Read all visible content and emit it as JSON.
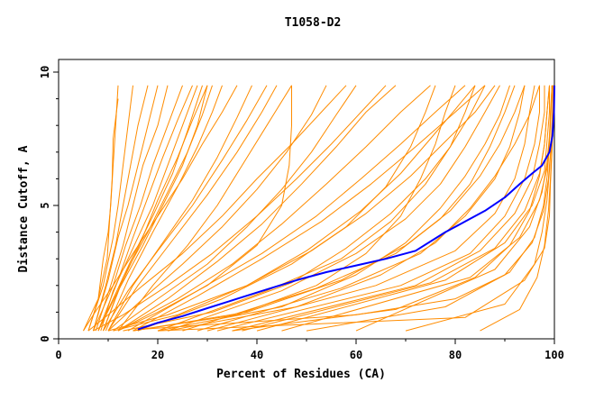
{
  "chart_data": {
    "type": "line",
    "title": "T1058-D2",
    "xlabel": "Percent of Residues (CA)",
    "ylabel": "Distance Cutoff, A",
    "xlim": [
      0,
      100
    ],
    "ylim": [
      0,
      10
    ],
    "x_ticks": [
      "0",
      "20",
      "40",
      "60",
      "80",
      "100"
    ],
    "y_ticks": [
      "0",
      "5",
      "10"
    ],
    "grid": false,
    "legend": "none",
    "colors": {
      "group": "#ff8c00",
      "highlight": "#0000ff"
    },
    "series": [
      {
        "x": [
          12,
          11.5,
          11,
          10.5,
          10,
          9,
          8,
          6
        ],
        "y": [
          9.5,
          8,
          6.5,
          5,
          4,
          3,
          1.5,
          0.3
        ]
      },
      {
        "x": [
          12,
          11,
          10.8,
          10.3,
          9.8,
          8,
          5
        ],
        "y": [
          9,
          7.5,
          6,
          4.5,
          3,
          1.5,
          0.3
        ]
      },
      {
        "x": [
          15,
          14,
          13,
          12,
          11,
          9,
          6
        ],
        "y": [
          9.5,
          8,
          6.5,
          5,
          3.8,
          2,
          0.3
        ]
      },
      {
        "x": [
          18,
          16,
          14.5,
          13,
          11.5,
          9.5,
          7
        ],
        "y": [
          9.5,
          8,
          6.5,
          5,
          3.5,
          2,
          0.3
        ]
      },
      {
        "x": [
          20,
          18,
          16,
          14,
          12,
          10,
          7
        ],
        "y": [
          9.5,
          8,
          6.5,
          5,
          3.8,
          2.2,
          0.3
        ]
      },
      {
        "x": [
          22,
          20,
          17,
          15,
          13,
          10.5,
          7.5
        ],
        "y": [
          9.5,
          8,
          6.5,
          5,
          3.5,
          2,
          0.3
        ]
      },
      {
        "x": [
          25,
          22,
          19,
          16.5,
          13.5,
          11,
          7
        ],
        "y": [
          9.5,
          8,
          6.5,
          5,
          3.5,
          2,
          0.3
        ]
      },
      {
        "x": [
          27,
          24,
          21,
          18,
          15,
          12,
          8
        ],
        "y": [
          9.5,
          8.2,
          6.8,
          5.3,
          3.8,
          2.2,
          0.3
        ]
      },
      {
        "x": [
          28,
          25,
          22,
          19,
          15,
          11,
          8.5
        ],
        "y": [
          9.5,
          8,
          6.5,
          5,
          3.4,
          1.8,
          0.3
        ]
      },
      {
        "x": [
          30,
          27,
          24,
          20,
          16.5,
          12.5,
          9
        ],
        "y": [
          9.5,
          8.2,
          6.8,
          5.2,
          3.6,
          2,
          0.3
        ]
      },
      {
        "x": [
          31,
          29,
          26,
          22,
          18,
          13,
          9
        ],
        "y": [
          9.5,
          8.4,
          7,
          5.5,
          4,
          2.3,
          0.3
        ]
      },
      {
        "x": [
          30,
          28,
          25,
          21,
          17,
          12,
          8
        ],
        "y": [
          9.5,
          8,
          6.5,
          5,
          3.5,
          1.8,
          0.3
        ]
      },
      {
        "x": [
          33,
          31,
          28,
          24,
          19,
          14,
          9.5
        ],
        "y": [
          9.5,
          8.5,
          7.2,
          5.7,
          4,
          2.2,
          0.3
        ]
      },
      {
        "x": [
          29,
          26,
          23,
          19,
          15,
          11.5,
          8
        ],
        "y": [
          9.5,
          7.8,
          6.2,
          4.6,
          3.1,
          1.7,
          0.3
        ]
      },
      {
        "x": [
          39,
          36,
          32,
          27,
          21,
          15,
          10
        ],
        "y": [
          9.5,
          8.3,
          6.8,
          5.2,
          3.6,
          2,
          0.3
        ]
      },
      {
        "x": [
          42,
          38,
          33,
          27,
          20,
          14,
          9
        ],
        "y": [
          9.5,
          8.2,
          6.7,
          5,
          3.3,
          1.8,
          0.3
        ]
      },
      {
        "x": [
          44,
          41,
          36,
          30,
          23,
          16,
          10
        ],
        "y": [
          9.5,
          8.5,
          7,
          5.4,
          3.7,
          2,
          0.3
        ]
      },
      {
        "x": [
          47,
          42,
          37,
          32,
          26,
          19,
          12
        ],
        "y": [
          9.5,
          8,
          6.5,
          5,
          3.5,
          2,
          0.3
        ]
      },
      {
        "x": [
          47,
          47,
          46.5,
          45,
          40,
          30,
          20,
          12
        ],
        "y": [
          9.5,
          8,
          6.5,
          5,
          3.5,
          2,
          1,
          0.3
        ]
      },
      {
        "x": [
          54,
          51,
          46,
          40,
          33,
          25,
          17,
          10
        ],
        "y": [
          9.5,
          8.4,
          7,
          5.6,
          4.2,
          2.8,
          1.5,
          0.3
        ]
      },
      {
        "x": [
          60,
          56,
          51,
          45,
          38,
          30,
          20,
          11
        ],
        "y": [
          9.5,
          8.4,
          7,
          5.6,
          4.2,
          2.8,
          1.5,
          0.3
        ]
      },
      {
        "x": [
          68,
          62,
          56,
          49,
          41,
          32,
          22,
          12
        ],
        "y": [
          9.5,
          8.5,
          7.2,
          5.8,
          4.3,
          2.9,
          1.5,
          0.3
        ]
      },
      {
        "x": [
          75,
          69,
          62,
          54,
          45,
          35,
          24,
          12
        ],
        "y": [
          9.5,
          8.5,
          7.2,
          5.8,
          4.3,
          2.8,
          1.5,
          0.3
        ]
      },
      {
        "x": [
          82,
          76,
          69,
          61,
          52,
          41,
          28,
          14
        ],
        "y": [
          9.5,
          8.5,
          7.3,
          6,
          4.6,
          3.2,
          1.8,
          0.3
        ]
      },
      {
        "x": [
          86,
          80,
          72,
          63,
          53,
          41,
          28,
          15
        ],
        "y": [
          9.5,
          8.5,
          7.2,
          5.8,
          4.4,
          3,
          1.6,
          0.3
        ]
      },
      {
        "x": [
          76,
          74,
          71,
          66,
          58,
          47,
          33,
          16
        ],
        "y": [
          9.5,
          8.5,
          7.2,
          5.7,
          4.2,
          2.8,
          1.5,
          0.3
        ]
      },
      {
        "x": [
          84,
          82,
          79,
          74,
          67,
          57,
          42,
          20
        ],
        "y": [
          9.5,
          8.5,
          7.2,
          5.8,
          4.4,
          3,
          1.8,
          0.3
        ]
      },
      {
        "x": [
          89,
          86,
          82,
          77,
          70,
          60,
          45,
          22
        ],
        "y": [
          9.5,
          8.5,
          7.2,
          5.8,
          4.5,
          3.2,
          1.8,
          0.3
        ]
      },
      {
        "x": [
          92,
          90,
          87,
          83,
          77,
          68,
          52,
          25
        ],
        "y": [
          9.5,
          8.5,
          7.2,
          5.8,
          4.5,
          3.2,
          1.9,
          0.3
        ]
      },
      {
        "x": [
          94,
          93,
          91,
          88,
          82,
          73,
          57,
          28
        ],
        "y": [
          9.5,
          8.5,
          7.2,
          6,
          4.6,
          3.2,
          1.9,
          0.3
        ]
      },
      {
        "x": [
          96,
          95,
          94,
          92,
          88,
          80,
          64,
          30
        ],
        "y": [
          9.5,
          8.5,
          7.3,
          6,
          4.7,
          3.3,
          2,
          0.3
        ]
      },
      {
        "x": [
          97,
          97,
          96,
          94,
          90,
          83,
          69,
          32
        ],
        "y": [
          9.5,
          8.5,
          7.3,
          6,
          4.6,
          3.2,
          2,
          0.3
        ]
      },
      {
        "x": [
          98,
          98,
          97,
          95.5,
          92,
          85,
          72,
          35
        ],
        "y": [
          9.5,
          8.5,
          7.3,
          6,
          4.7,
          3.3,
          2,
          0.3
        ]
      },
      {
        "x": [
          99,
          98.5,
          98,
          97,
          94,
          88,
          75,
          37
        ],
        "y": [
          9.5,
          8.5,
          7.3,
          6.2,
          4.8,
          3.4,
          2.1,
          0.3
        ]
      },
      {
        "x": [
          99,
          99,
          98.5,
          98,
          95.5,
          90,
          78,
          40
        ],
        "y": [
          9.5,
          8.5,
          7.4,
          6.3,
          5,
          3.6,
          2.2,
          0.3
        ]
      },
      {
        "x": [
          99.5,
          99.2,
          99,
          98.5,
          97,
          93,
          83,
          45
        ],
        "y": [
          9.5,
          8.5,
          7.5,
          6.4,
          5.2,
          3.8,
          2.3,
          0.3
        ]
      },
      {
        "x": [
          99.5,
          99.3,
          99,
          98.5,
          97.5,
          95,
          88,
          60
        ],
        "y": [
          9.5,
          8.5,
          7.6,
          6.6,
          5.5,
          4.2,
          2.6,
          0.3
        ]
      },
      {
        "x": [
          100,
          99.8,
          99.5,
          99.2,
          99,
          98,
          94,
          82,
          20
        ],
        "y": [
          9.5,
          8.3,
          7,
          5.8,
          4.6,
          3.4,
          2.2,
          0.8,
          0.3
        ]
      },
      {
        "x": [
          97,
          95,
          92,
          88,
          83,
          76,
          65,
          48,
          22
        ],
        "y": [
          9.5,
          8.4,
          7.3,
          6.1,
          4.9,
          3.6,
          2.4,
          1.2,
          0.3
        ]
      },
      {
        "x": [
          91,
          89,
          86,
          82,
          77,
          70,
          60,
          45,
          20
        ],
        "y": [
          9.5,
          8.4,
          7.3,
          6.1,
          4.9,
          3.6,
          2.4,
          1.2,
          0.3
        ]
      },
      {
        "x": [
          84,
          80,
          75,
          69,
          61,
          50,
          38,
          22,
          10
        ],
        "y": [
          9.5,
          8.6,
          7.5,
          6.2,
          4.8,
          3.3,
          2,
          0.9,
          0.3
        ]
      },
      {
        "x": [
          88,
          84,
          78,
          71,
          62,
          51,
          38,
          24,
          11
        ],
        "y": [
          9.5,
          8.5,
          7.4,
          6.1,
          4.7,
          3.3,
          2,
          0.9,
          0.3
        ]
      },
      {
        "x": [
          94,
          92,
          89,
          85,
          79,
          70,
          57,
          38,
          15
        ],
        "y": [
          9.5,
          8.5,
          7.3,
          6.1,
          4.8,
          3.5,
          2.2,
          1,
          0.3
        ]
      },
      {
        "x": [
          80,
          78,
          76,
          73,
          69,
          62,
          52,
          36,
          15
        ],
        "y": [
          9.5,
          8.5,
          7.3,
          6,
          4.6,
          3.2,
          2,
          0.9,
          0.3
        ]
      },
      {
        "x": [
          66,
          61,
          55,
          48,
          40,
          31,
          22,
          13,
          7
        ],
        "y": [
          9.5,
          8.5,
          7.3,
          6,
          4.6,
          3.2,
          2,
          0.9,
          0.3
        ]
      },
      {
        "x": [
          58,
          53,
          47,
          40,
          33,
          25,
          17,
          10,
          6
        ],
        "y": [
          9.5,
          8.5,
          7.3,
          6,
          4.6,
          3.2,
          2,
          0.9,
          0.3
        ]
      },
      {
        "x": [
          36,
          33,
          29,
          25,
          20,
          15,
          11,
          7,
          5
        ],
        "y": [
          9.5,
          8.5,
          7.3,
          6,
          4.6,
          3.2,
          2,
          0.9,
          0.3
        ]
      },
      {
        "x": [
          99.7,
          99.6,
          99.4,
          99,
          98.5,
          97.5,
          96,
          90,
          70
        ],
        "y": [
          9.5,
          8.5,
          7.4,
          6.3,
          5.2,
          4,
          2.8,
          1.3,
          0.3
        ]
      },
      {
        "x": [
          99.8,
          99.7,
          99.5,
          99.2,
          98.8,
          98,
          96.5,
          93,
          85
        ],
        "y": [
          9.5,
          8.4,
          7.2,
          6,
          4.8,
          3.5,
          2.3,
          1.1,
          0.3
        ]
      },
      {
        "x": [
          99,
          98.5,
          98,
          97,
          95,
          91,
          84,
          68,
          35
        ],
        "y": [
          9.5,
          8.5,
          7.3,
          6.1,
          4.8,
          3.5,
          2.3,
          1.1,
          0.3
        ]
      },
      {
        "x": [
          86,
          83,
          79,
          74,
          67,
          58,
          47,
          31,
          13
        ],
        "y": [
          9.5,
          8.4,
          7.2,
          6,
          4.7,
          3.4,
          2.1,
          1,
          0.3
        ]
      },
      {
        "x": [
          99.5,
          99.3,
          99,
          98.6,
          97.8,
          96,
          91,
          78,
          50
        ],
        "y": [
          9.5,
          8.4,
          7.3,
          6.2,
          5,
          3.8,
          2.5,
          1.2,
          0.3
        ]
      },
      {
        "x": [
          99.8,
          99.6,
          99.3,
          98.8,
          97.8,
          95.5,
          90,
          80,
          60,
          16,
          16
        ],
        "y": [
          9.5,
          8.4,
          7.2,
          6,
          4.8,
          3.6,
          2.4,
          1.5,
          0.9,
          0.35,
          0.3
        ]
      },
      {
        "highlight": true,
        "x": [
          100,
          99.9,
          99.6,
          99,
          97.5,
          95.5,
          93,
          90,
          86,
          82,
          78,
          72,
          66,
          60,
          54,
          48,
          42,
          36,
          30,
          25,
          20,
          16
        ],
        "y": [
          9.5,
          8.5,
          7.6,
          7,
          6.5,
          6.2,
          5.8,
          5.3,
          4.8,
          4.4,
          4,
          3.3,
          3,
          2.75,
          2.5,
          2.2,
          1.85,
          1.5,
          1.15,
          0.85,
          0.6,
          0.35
        ]
      }
    ]
  }
}
